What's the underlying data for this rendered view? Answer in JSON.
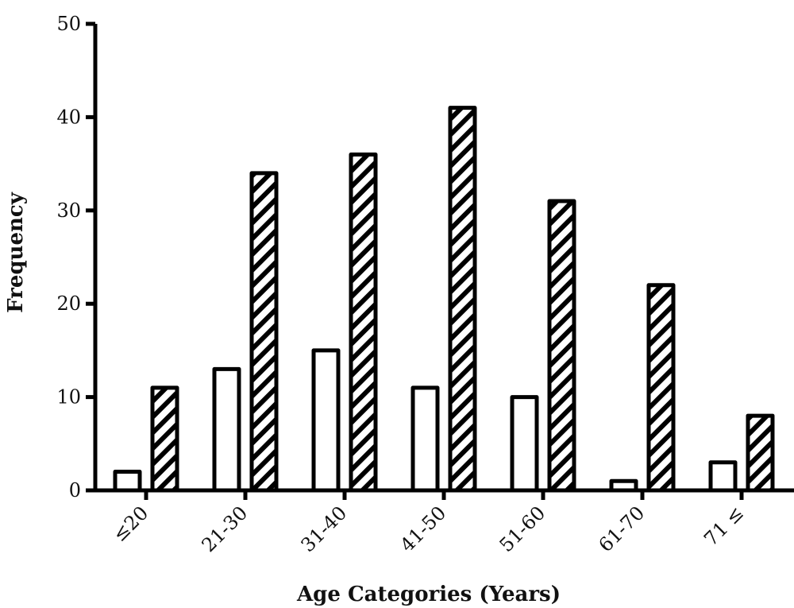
{
  "chart_data": {
    "type": "bar",
    "xlabel": "Age Categories (Years)",
    "ylabel": "Frequency",
    "categories": [
      "≤20",
      "21-30",
      "31-40",
      "41-50",
      "51-60",
      "61-70",
      "71 ≤"
    ],
    "series": [
      {
        "fill": "plain-white",
        "values": [
          2,
          13,
          15,
          11,
          10,
          1,
          3
        ]
      },
      {
        "fill": "diagonal-hatch",
        "values": [
          11,
          34,
          36,
          41,
          31,
          22,
          8
        ]
      }
    ],
    "ylim": [
      0,
      50
    ],
    "yticks": [
      "0",
      "10",
      "20",
      "30",
      "40",
      "50"
    ],
    "grid": false,
    "legend": "none",
    "colors": {
      "stroke": "#000000",
      "fill": "#ffffff"
    }
  }
}
